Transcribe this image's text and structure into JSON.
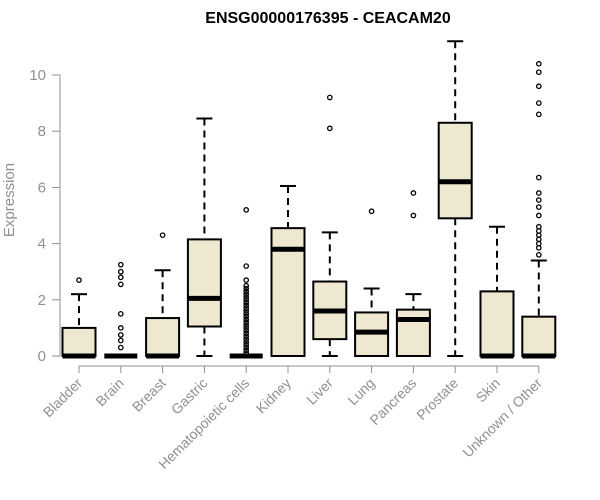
{
  "chart_data": {
    "type": "box",
    "title": "ENSG00000176395 - CEACAM20",
    "xlabel": "",
    "ylabel": "Expression",
    "ylim": [
      0,
      11.3
    ],
    "yticks": [
      "0",
      "2",
      "4",
      "6",
      "8",
      "10"
    ],
    "categories": [
      "Bladder",
      "Brain",
      "Breast",
      "Gastric",
      "Hematopoietic cells",
      "Kidney",
      "Liver",
      "Lung",
      "Pancreas",
      "Prostate",
      "Skin",
      "Unknown / Other"
    ],
    "series": [
      {
        "name": "Bladder",
        "min": 0,
        "q1": 0,
        "median": 0,
        "q3": 1.0,
        "max": 2.2,
        "outliers": [
          2.7
        ]
      },
      {
        "name": "Brain",
        "min": 0,
        "q1": 0,
        "median": 0,
        "q3": 0,
        "max": 0,
        "outliers": [
          0.3,
          0.55,
          0.75,
          1.0,
          1.5,
          2.55,
          2.8,
          3.0,
          3.25
        ]
      },
      {
        "name": "Breast",
        "min": 0,
        "q1": 0,
        "median": 0,
        "q3": 1.35,
        "max": 3.05,
        "outliers": [
          4.3
        ]
      },
      {
        "name": "Gastric",
        "min": 0,
        "q1": 1.05,
        "median": 2.05,
        "q3": 4.15,
        "max": 8.45,
        "outliers": []
      },
      {
        "name": "Hematopoietic cells",
        "min": 0,
        "q1": 0,
        "median": 0,
        "q3": 0,
        "max": 0,
        "outliers": [
          0.1,
          0.2,
          0.3,
          0.4,
          0.5,
          0.6,
          0.7,
          0.8,
          0.9,
          1.0,
          1.1,
          1.2,
          1.3,
          1.4,
          1.5,
          1.6,
          1.7,
          1.8,
          1.9,
          2.0,
          2.1,
          2.2,
          2.3,
          2.4,
          2.5,
          2.7,
          3.2,
          5.2
        ]
      },
      {
        "name": "Kidney",
        "min": 0,
        "q1": 0,
        "median": 3.8,
        "q3": 4.55,
        "max": 6.05,
        "outliers": []
      },
      {
        "name": "Liver",
        "min": 0,
        "q1": 0.6,
        "median": 1.6,
        "q3": 2.65,
        "max": 4.4,
        "outliers": [
          8.1,
          9.2
        ]
      },
      {
        "name": "Lung",
        "min": 0,
        "q1": 0,
        "median": 0.85,
        "q3": 1.55,
        "max": 2.4,
        "outliers": [
          5.15
        ]
      },
      {
        "name": "Pancreas",
        "min": 0,
        "q1": 0,
        "median": 1.3,
        "q3": 1.65,
        "max": 2.2,
        "outliers": [
          5.0,
          5.8
        ]
      },
      {
        "name": "Prostate",
        "min": 0,
        "q1": 4.9,
        "median": 6.2,
        "q3": 8.3,
        "max": 11.2,
        "outliers": []
      },
      {
        "name": "Skin",
        "min": 0,
        "q1": 0,
        "median": 0,
        "q3": 2.3,
        "max": 4.6,
        "outliers": []
      },
      {
        "name": "Unknown / Other",
        "min": 0,
        "q1": 0,
        "median": 0,
        "q3": 1.4,
        "max": 3.4,
        "outliers": [
          3.6,
          3.85,
          4.0,
          4.15,
          4.3,
          4.45,
          4.6,
          5.0,
          5.3,
          5.55,
          5.8,
          6.35,
          8.6,
          9.0,
          9.6,
          10.1,
          10.4
        ]
      }
    ],
    "colors": {
      "box_fill": "#EEE8D0",
      "box_stroke": "#000000",
      "axis": "#909090"
    },
    "grid": false,
    "legend": "none"
  }
}
